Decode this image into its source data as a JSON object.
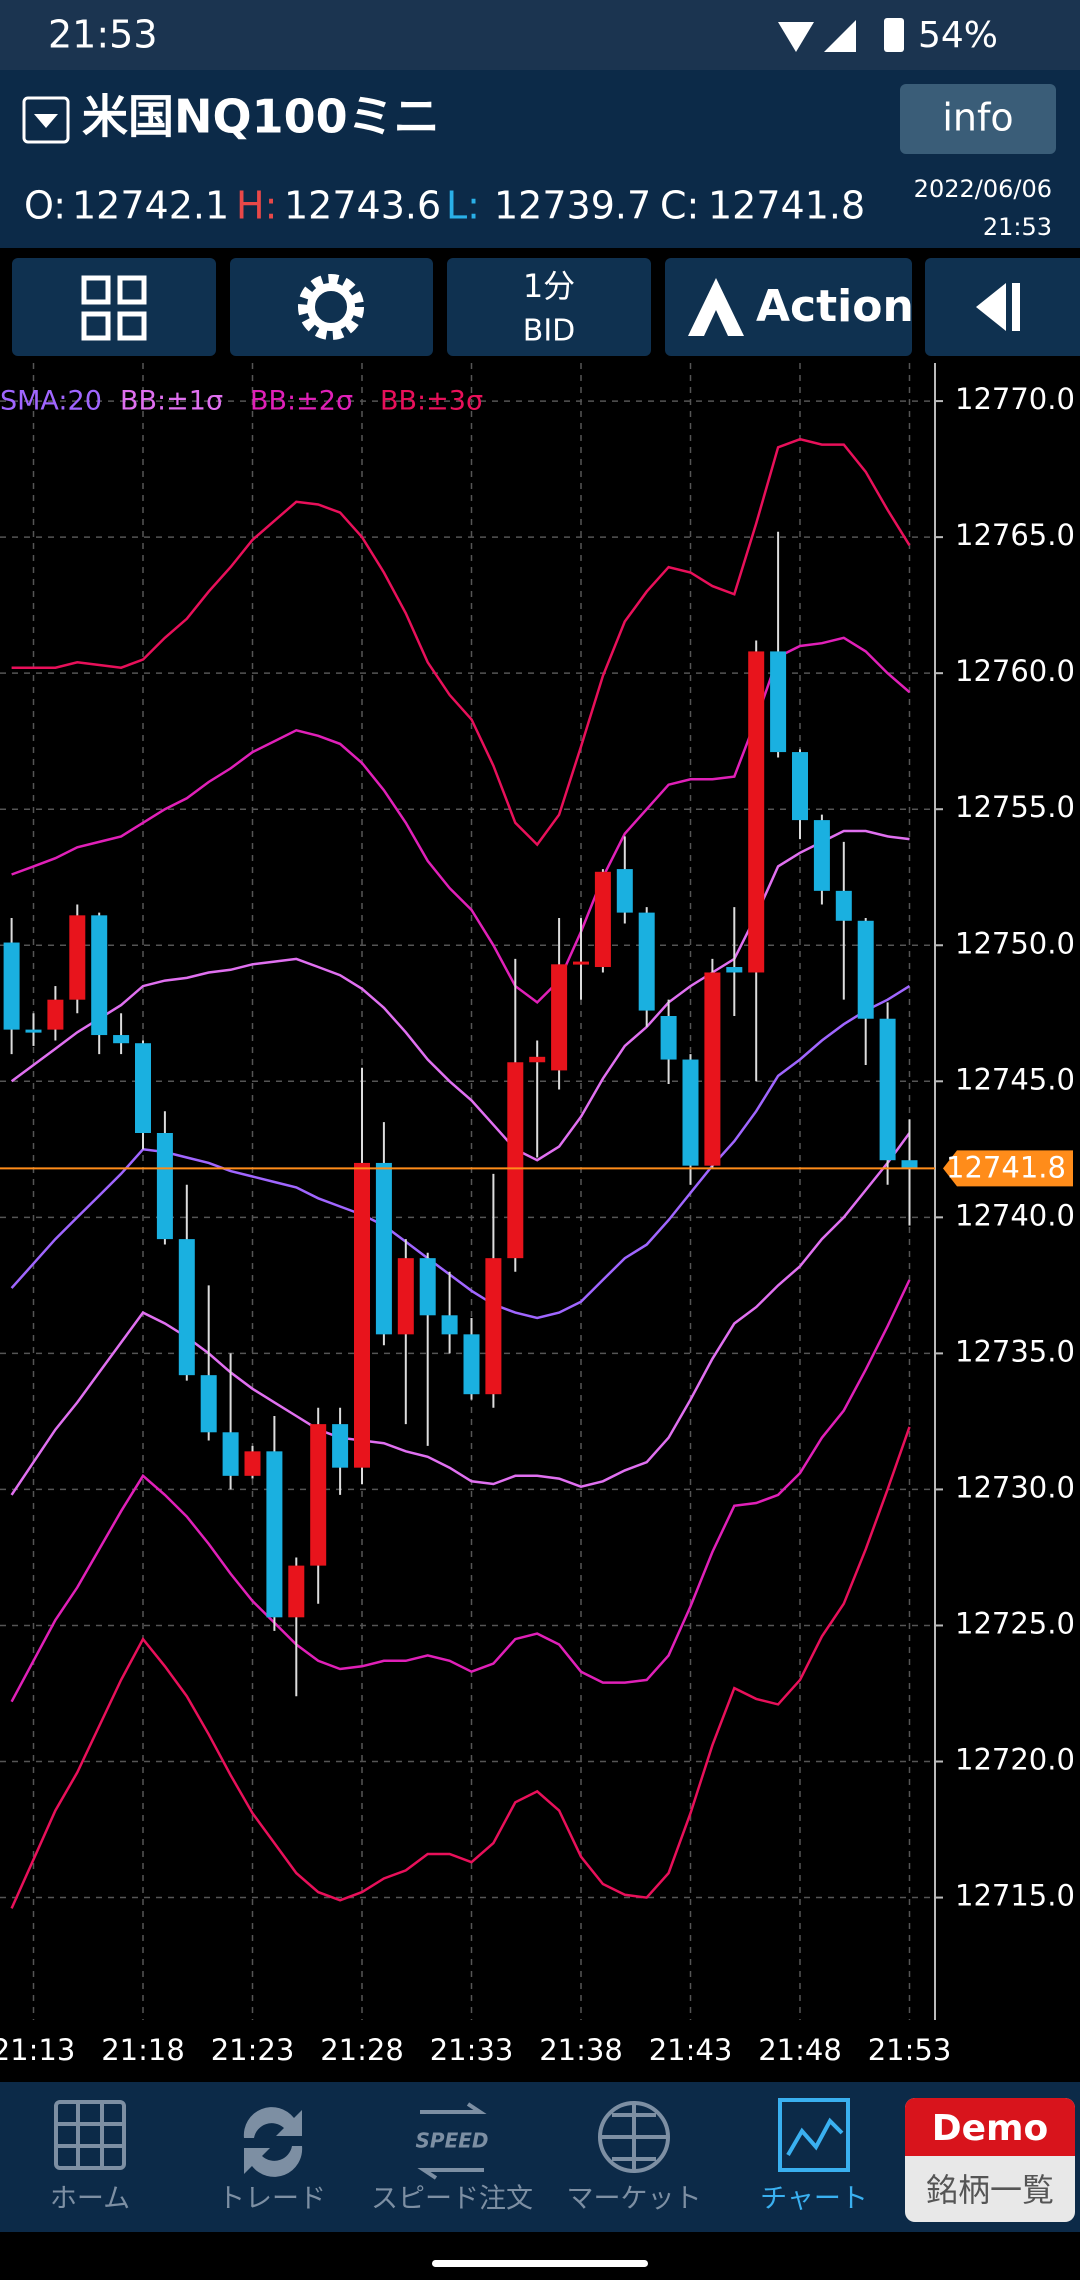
{
  "status_bar": {
    "time": "21:53",
    "battery": "54%"
  },
  "header": {
    "symbol": "米国NQ100ミニ",
    "info_button": "info",
    "ohlc": [
      {
        "label": "O:",
        "value": "12742.1"
      },
      {
        "label": "H:",
        "value": "12743.6"
      },
      {
        "label": "L:",
        "value": "12739.7"
      },
      {
        "label": "C:",
        "value": "12741.8"
      }
    ],
    "date": "2022/06/06",
    "time": "21:53"
  },
  "toolbar": {
    "period": "1分",
    "price_type": "BID",
    "action": "Action"
  },
  "chart_data": {
    "type": "candlestick",
    "categories": [
      null,
      "21:13",
      null,
      null,
      null,
      null,
      "21:18",
      null,
      null,
      null,
      null,
      "21:23",
      null,
      null,
      null,
      null,
      "21:28",
      null,
      null,
      null,
      null,
      "21:33",
      null,
      null,
      null,
      null,
      "21:38",
      null,
      null,
      null,
      null,
      "21:43",
      null,
      null,
      null,
      null,
      "21:48",
      null,
      null,
      null,
      null,
      "21:53"
    ],
    "open": [
      12750.1,
      12746.9,
      12746.9,
      12748.0,
      12751.1,
      12746.7,
      12746.4,
      12743.1,
      12739.2,
      12734.2,
      12732.1,
      12730.5,
      12731.4,
      12725.3,
      12727.2,
      12732.4,
      12730.8,
      12742.0,
      12735.7,
      12738.5,
      12736.4,
      12735.7,
      12733.5,
      12738.5,
      12745.7,
      12745.4,
      12749.3,
      12749.2,
      12752.8,
      12751.2,
      12747.4,
      12745.8,
      12741.9,
      12749.2,
      12749.0,
      12760.8,
      12757.1,
      12754.6,
      12752.0,
      12750.9,
      12747.3,
      12742.1
    ],
    "high": [
      12751.0,
      12747.5,
      12748.5,
      12751.5,
      12751.2,
      12747.5,
      12746.5,
      12743.9,
      12741.2,
      12737.5,
      12735.0,
      12731.6,
      12732.7,
      12727.5,
      12733.0,
      12733.0,
      12745.5,
      12743.5,
      12739.2,
      12738.7,
      12738.0,
      12736.3,
      12741.6,
      12749.5,
      12746.5,
      12751.0,
      12751.0,
      12752.8,
      12754.0,
      12751.4,
      12748.0,
      12746.0,
      12749.5,
      12751.4,
      12761.2,
      12765.2,
      12757.2,
      12754.8,
      12753.8,
      12751.0,
      12747.9,
      12743.6
    ],
    "low": [
      12746.0,
      12746.3,
      12746.5,
      12747.5,
      12746.0,
      12746.0,
      12742.5,
      12739.0,
      12734.0,
      12731.8,
      12730.0,
      12730.4,
      12724.8,
      12722.4,
      12725.8,
      12729.8,
      12730.2,
      12735.3,
      12732.4,
      12731.6,
      12735.0,
      12733.3,
      12733.0,
      12738.0,
      12742.2,
      12744.7,
      12748.0,
      12749.0,
      12750.8,
      12747.0,
      12744.9,
      12741.2,
      12741.8,
      12747.4,
      12745.0,
      12756.9,
      12753.9,
      12751.5,
      12748.0,
      12745.6,
      12741.2,
      12739.7
    ],
    "close": [
      12746.9,
      12746.9,
      12748.0,
      12751.1,
      12746.7,
      12746.4,
      12743.1,
      12739.2,
      12734.2,
      12732.1,
      12730.5,
      12731.4,
      12725.3,
      12727.2,
      12732.4,
      12730.8,
      12742.0,
      12735.7,
      12738.5,
      12736.4,
      12735.7,
      12733.5,
      12738.5,
      12745.7,
      12745.9,
      12749.3,
      12749.4,
      12752.7,
      12751.2,
      12747.6,
      12745.8,
      12741.9,
      12749.0,
      12749.0,
      12760.8,
      12757.1,
      12754.6,
      12752.0,
      12750.9,
      12747.3,
      12742.1,
      12741.8
    ],
    "up_color": "#e8141c",
    "down_color": "#1ab0e0",
    "indicators": [
      {
        "name": "SMA:20",
        "color": "#a066ff",
        "lines": [
          [
            12737.4,
            12738.3,
            12739.2,
            12740.0,
            12740.8,
            12741.6,
            12742.5,
            12742.4,
            12742.2,
            12742.0,
            12741.7,
            12741.5,
            12741.3,
            12741.1,
            12740.7,
            12740.4,
            12740.1,
            12739.7,
            12739.1,
            12738.5,
            12737.9,
            12737.3,
            12736.8,
            12736.5,
            12736.3,
            12736.5,
            12736.9,
            12737.7,
            12738.5,
            12739.0,
            12739.9,
            12740.9,
            12741.9,
            12742.8,
            12743.9,
            12745.2,
            12745.8,
            12746.5,
            12747.1,
            12747.6,
            12748.0,
            12748.5
          ]
        ]
      },
      {
        "name": "BB:±1σ",
        "color": "#e070f0",
        "lines": [
          [
            12745.0,
            12745.6,
            12746.2,
            12746.8,
            12747.3,
            12747.8,
            12748.5,
            12748.7,
            12748.8,
            12749.0,
            12749.1,
            12749.3,
            12749.4,
            12749.5,
            12749.2,
            12748.9,
            12748.4,
            12747.7,
            12746.8,
            12745.8,
            12745.0,
            12744.3,
            12743.4,
            12742.5,
            12742.1,
            12742.6,
            12743.7,
            12745.1,
            12746.3,
            12747.0,
            12747.9,
            12748.5,
            12749.0,
            12749.5,
            12751.1,
            12752.9,
            12753.4,
            12753.8,
            12754.2,
            12754.2,
            12754.0,
            12753.9
          ],
          [
            12729.8,
            12731.0,
            12732.2,
            12733.2,
            12734.3,
            12735.4,
            12736.5,
            12736.1,
            12735.6,
            12735.0,
            12734.3,
            12733.7,
            12733.2,
            12732.7,
            12732.2,
            12731.9,
            12731.8,
            12731.7,
            12731.4,
            12731.2,
            12730.8,
            12730.3,
            12730.2,
            12730.5,
            12730.5,
            12730.4,
            12730.1,
            12730.3,
            12730.7,
            12731.0,
            12731.9,
            12733.3,
            12734.8,
            12736.1,
            12736.7,
            12737.5,
            12738.2,
            12739.2,
            12740.0,
            12741.0,
            12742.0,
            12743.1
          ]
        ]
      },
      {
        "name": "BB:±2σ",
        "color": "#e020b8",
        "lines": [
          [
            12752.6,
            12752.9,
            12753.2,
            12753.6,
            12753.8,
            12754.0,
            12754.5,
            12755.0,
            12755.4,
            12756.0,
            12756.5,
            12757.1,
            12757.5,
            12757.9,
            12757.7,
            12757.4,
            12756.7,
            12755.7,
            12754.5,
            12753.1,
            12752.1,
            12751.3,
            12750.0,
            12748.5,
            12747.9,
            12748.7,
            12750.5,
            12752.5,
            12754.1,
            12755.0,
            12755.9,
            12756.1,
            12756.1,
            12756.2,
            12758.3,
            12760.6,
            12761.0,
            12761.1,
            12761.3,
            12760.8,
            12760.0,
            12759.3
          ],
          [
            12722.2,
            12723.7,
            12725.2,
            12726.4,
            12727.8,
            12729.2,
            12730.5,
            12729.8,
            12729.0,
            12728.0,
            12726.9,
            12725.9,
            12725.1,
            12724.3,
            12723.7,
            12723.4,
            12723.5,
            12723.7,
            12723.7,
            12723.9,
            12723.7,
            12723.3,
            12723.6,
            12724.5,
            12724.7,
            12724.3,
            12723.3,
            12722.9,
            12722.9,
            12723.0,
            12723.9,
            12725.7,
            12727.7,
            12729.4,
            12729.5,
            12729.8,
            12730.6,
            12731.9,
            12732.9,
            12734.4,
            12736.0,
            12737.7
          ]
        ]
      },
      {
        "name": "BB:±3σ",
        "color": "#e8105a",
        "lines": [
          [
            12760.2,
            12760.2,
            12760.2,
            12760.4,
            12760.3,
            12760.2,
            12760.5,
            12761.3,
            12762.0,
            12763.0,
            12763.9,
            12764.9,
            12765.6,
            12766.3,
            12766.2,
            12765.9,
            12765.0,
            12763.7,
            12762.2,
            12760.4,
            12759.2,
            12758.3,
            12756.6,
            12754.5,
            12753.7,
            12754.8,
            12757.3,
            12759.9,
            12761.9,
            12763.0,
            12763.9,
            12763.7,
            12763.2,
            12762.9,
            12765.5,
            12768.3,
            12768.6,
            12768.4,
            12768.4,
            12767.4,
            12766.0,
            12764.7
          ],
          [
            12714.6,
            12716.4,
            12718.2,
            12719.6,
            12721.3,
            12723.0,
            12724.5,
            12723.5,
            12722.4,
            12721.0,
            12719.5,
            12718.1,
            12717.0,
            12715.9,
            12715.2,
            12714.9,
            12715.2,
            12715.7,
            12716.0,
            12716.6,
            12716.6,
            12716.3,
            12717.0,
            12718.5,
            12718.9,
            12718.2,
            12716.5,
            12715.5,
            12715.1,
            12715.0,
            12715.9,
            12718.1,
            12720.6,
            12722.7,
            12722.3,
            12722.1,
            12723.0,
            12724.6,
            12725.8,
            12727.8,
            12730.0,
            12732.3
          ]
        ]
      }
    ],
    "last_price": 12741.8,
    "last_price_color": "#ff8c1a",
    "ylim": [
      12710.5,
      12771.4
    ],
    "yticks": [
      {
        "value": 12715,
        "label": "12715.0"
      },
      {
        "value": 12720,
        "label": "12720.0"
      },
      {
        "value": 12725,
        "label": "12725.0"
      },
      {
        "value": 12730,
        "label": "12730.0"
      },
      {
        "value": 12735,
        "label": "12735.0"
      },
      {
        "value": 12740,
        "label": "12740.0"
      },
      {
        "value": 12745,
        "label": "12745.0"
      },
      {
        "value": 12750,
        "label": "12750.0"
      },
      {
        "value": 12755,
        "label": "12755.0"
      },
      {
        "value": 12760,
        "label": "12760.0"
      },
      {
        "value": 12765,
        "label": "12765.0"
      },
      {
        "value": 12770,
        "label": "12770.0"
      }
    ],
    "grid": true
  },
  "nav": {
    "items": [
      "ホーム",
      "トレード",
      "スピード注文",
      "マーケット",
      "チャート"
    ],
    "speed_icon": "SPEED",
    "active": 4,
    "demo": "Demo",
    "demo_sub": "銘柄一覧"
  }
}
